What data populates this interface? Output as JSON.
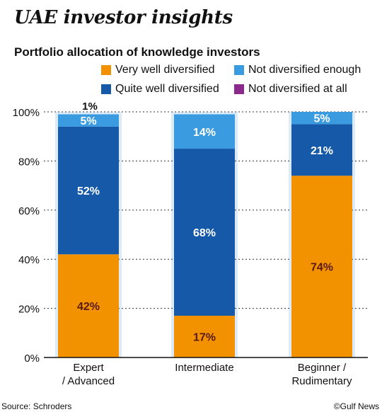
{
  "header": {
    "title": "UAE investor insights",
    "subtitle": "Portfolio allocation of knowledge investors"
  },
  "legend": [
    {
      "label": "Very well diversified",
      "color": "#F39200"
    },
    {
      "label": "Not diversified enough",
      "color": "#3A9BE0"
    },
    {
      "label": "Quite well diversified",
      "color": "#1559A8"
    },
    {
      "label": "Not diversified at all",
      "color": "#8B2A8C"
    }
  ],
  "footer": {
    "source": "Source: Schroders",
    "credit": "©Gulf News"
  },
  "chart_data": {
    "type": "bar",
    "stacked": true,
    "categories": [
      [
        "Expert",
        "/ Advanced"
      ],
      [
        "Intermediate"
      ],
      [
        "Beginner /",
        "Rudimentary"
      ]
    ],
    "series": [
      {
        "name": "Very well diversified",
        "color": "#F39200",
        "values": [
          42,
          17,
          74
        ],
        "labels": [
          "42%",
          "17%",
          "74%"
        ],
        "label_color": "#5a1a10"
      },
      {
        "name": "Not diversified at all",
        "color": "#8B2A8C",
        "values": [
          0,
          0,
          0
        ],
        "labels": [
          "",
          "",
          ""
        ],
        "label_color": "#ffffff"
      },
      {
        "name": "Quite well diversified",
        "color": "#1559A8",
        "values": [
          52,
          68,
          21
        ],
        "labels": [
          "52%",
          "68%",
          "21%"
        ],
        "label_color": "#ffffff"
      },
      {
        "name": "Not diversified enough",
        "color": "#3A9BE0",
        "values": [
          5,
          14,
          5
        ],
        "labels": [
          "5%",
          "14%",
          "5%"
        ],
        "label_color": "#ffffff"
      }
    ],
    "top_labels": [
      "1%",
      "",
      ""
    ],
    "yticks": [
      "0%",
      "20%",
      "40%",
      "60%",
      "80%",
      "100%"
    ],
    "ylim": [
      0,
      100
    ],
    "grid": true,
    "legend_position": "top"
  }
}
